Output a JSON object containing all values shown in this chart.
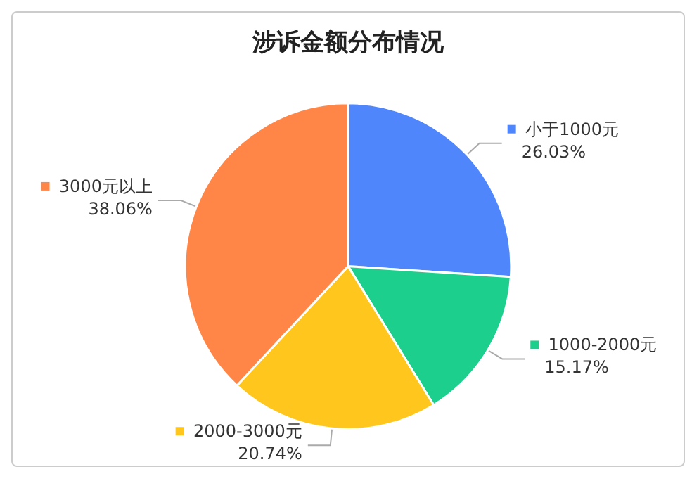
{
  "chart_data": {
    "type": "pie",
    "title": "涉诉金额分布情况",
    "categories": [
      "小于1000元",
      "1000-2000元",
      "2000-3000元",
      "3000元以上"
    ],
    "values": [
      26.03,
      15.17,
      20.74,
      38.06
    ],
    "colors": [
      "#4f86fb",
      "#1ccf8c",
      "#ffc61e",
      "#ff8646"
    ],
    "value_labels": [
      "26.03%",
      "15.17%",
      "20.74%",
      "38.06%"
    ],
    "legend": "right"
  }
}
